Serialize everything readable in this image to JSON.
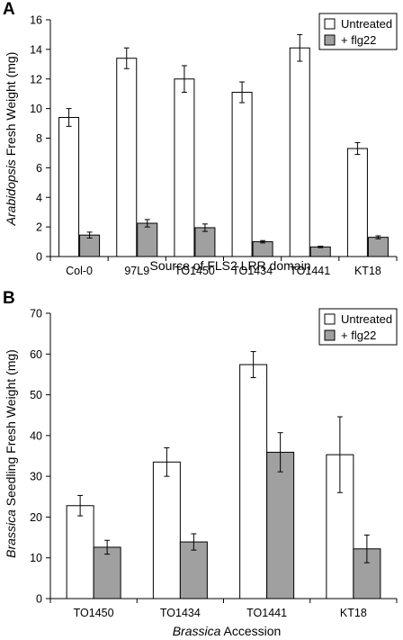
{
  "colors": {
    "untreated": "#ffffff",
    "flg22": "#a0a0a0"
  },
  "chart_data": [
    {
      "panel_label": "A",
      "type": "bar",
      "categories": [
        "Col-0",
        "97L9",
        "TO1450",
        "TO1434",
        "TO1441",
        "KT18"
      ],
      "series": [
        {
          "name": "Untreated",
          "values": [
            9.4,
            13.4,
            12.0,
            11.1,
            14.1,
            7.3
          ],
          "errors": [
            0.6,
            0.7,
            0.9,
            0.7,
            0.9,
            0.4
          ]
        },
        {
          "name": "+ flg22",
          "values": [
            1.45,
            2.25,
            1.95,
            1.0,
            0.65,
            1.3
          ],
          "errors": [
            0.2,
            0.25,
            0.25,
            0.08,
            0.05,
            0.1
          ]
        }
      ],
      "xlabel": "Source of FLS2 LRR domain",
      "ylabel_italic": "Arabidopsis",
      "ylabel_rest": " Fresh Weight (mg)",
      "ylim": [
        0,
        16
      ],
      "yticks": [
        "0",
        "2",
        "4",
        "6",
        "8",
        "10",
        "12",
        "14",
        "16"
      ],
      "legend_position": "top-right"
    },
    {
      "panel_label": "B",
      "type": "bar",
      "categories": [
        "TO1450",
        "TO1434",
        "TO1441",
        "KT18"
      ],
      "series": [
        {
          "name": "Untreated",
          "values": [
            22.8,
            33.5,
            57.4,
            35.3
          ],
          "errors": [
            2.5,
            3.5,
            3.2,
            9.3
          ]
        },
        {
          "name": "+ flg22",
          "values": [
            12.6,
            13.9,
            35.9,
            12.2
          ],
          "errors": [
            1.7,
            2.0,
            4.8,
            3.4
          ]
        }
      ],
      "xlabel_italic": "Brassica",
      "xlabel_rest": " Accession",
      "ylabel_italic": "Brassica",
      "ylabel_rest": " Seedling Fresh Weight (mg)",
      "ylim": [
        0,
        70
      ],
      "yticks": [
        "0",
        "10",
        "20",
        "30",
        "40",
        "50",
        "60",
        "70"
      ],
      "legend_position": "top-right"
    }
  ]
}
